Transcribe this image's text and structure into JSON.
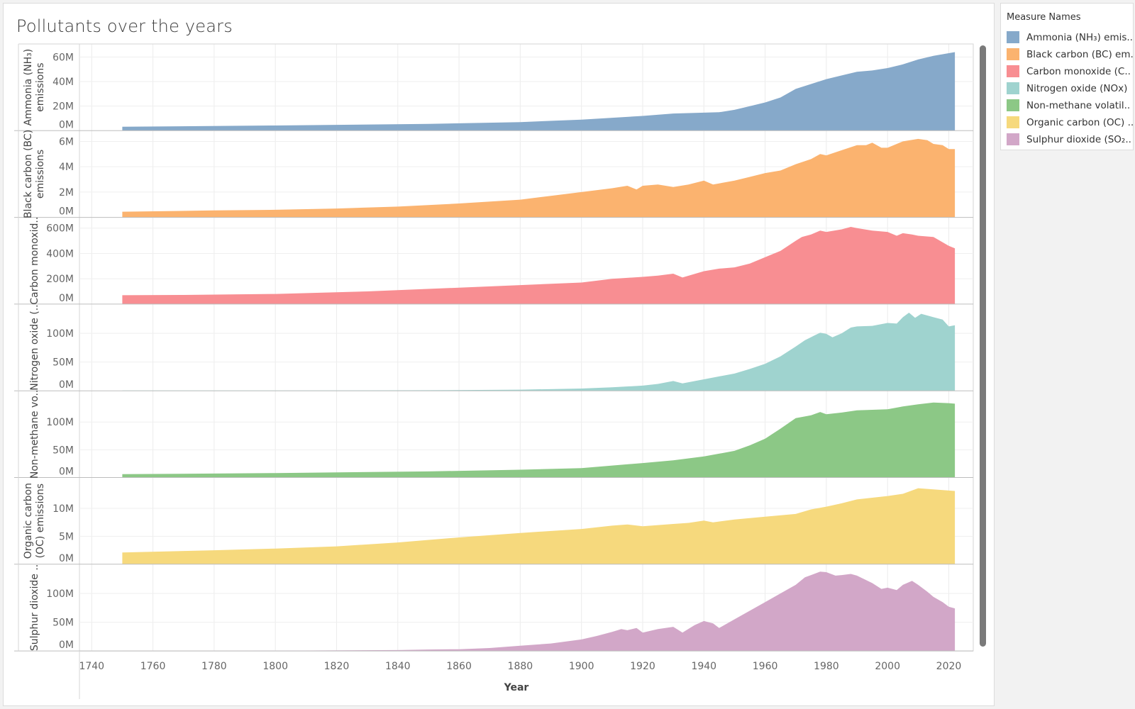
{
  "title": "Pollutants over the years",
  "legend": {
    "title": "Measure Names",
    "items": [
      {
        "label": "Ammonia (NH₃) emis..",
        "color": "#86a9ca"
      },
      {
        "label": "Black carbon (BC) em..",
        "color": "#fbb36f"
      },
      {
        "label": "Carbon monoxide (C..",
        "color": "#f88e92"
      },
      {
        "label": "Nitrogen oxide (NOx)",
        "color": "#9fd3cf"
      },
      {
        "label": "Non-methane volatil..",
        "color": "#8cc886"
      },
      {
        "label": "Organic carbon (OC) ..",
        "color": "#f6d97d"
      },
      {
        "label": "Sulphur dioxide (SO₂..",
        "color": "#d2a7c8"
      }
    ]
  },
  "chart_data": {
    "type": "area",
    "xlabel": "Year",
    "x_ticks": [
      1740,
      1760,
      1780,
      1800,
      1820,
      1840,
      1860,
      1880,
      1900,
      1920,
      1940,
      1960,
      1980,
      2000,
      2020
    ],
    "xlim": [
      1736,
      2028
    ],
    "grid": true,
    "legend_position": "right",
    "series": [
      {
        "axis_label": [
          "Ammonia (NH₃)",
          "emissions"
        ],
        "color": "#86a9ca",
        "ymax": 66000000,
        "y_ticks": [
          {
            "v": 0,
            "l": "0M"
          },
          {
            "v": 20000000,
            "l": "20M"
          },
          {
            "v": 40000000,
            "l": "40M"
          },
          {
            "v": 60000000,
            "l": "60M"
          }
        ],
        "points": [
          [
            1750,
            3200000.0
          ],
          [
            1800,
            4200000.0
          ],
          [
            1850,
            5500000.0
          ],
          [
            1880,
            7000000.0
          ],
          [
            1900,
            9000000.0
          ],
          [
            1920,
            12000000.0
          ],
          [
            1930,
            14000000.0
          ],
          [
            1945,
            15000000.0
          ],
          [
            1950,
            17000000.0
          ],
          [
            1955,
            20000000.0
          ],
          [
            1960,
            23000000.0
          ],
          [
            1965,
            27000000.0
          ],
          [
            1970,
            34000000.0
          ],
          [
            1975,
            38000000.0
          ],
          [
            1980,
            42000000.0
          ],
          [
            1985,
            45000000.0
          ],
          [
            1990,
            48000000.0
          ],
          [
            1995,
            49000000.0
          ],
          [
            2000,
            51000000.0
          ],
          [
            2005,
            54000000.0
          ],
          [
            2010,
            58000000.0
          ],
          [
            2015,
            61000000.0
          ],
          [
            2022,
            64000000.0
          ]
        ]
      },
      {
        "axis_label": [
          "Black carbon (BC)",
          "emissions"
        ],
        "color": "#fbb36f",
        "ymax": 6400000,
        "y_ticks": [
          {
            "v": 0,
            "l": "0M"
          },
          {
            "v": 2000000,
            "l": "2M"
          },
          {
            "v": 4000000,
            "l": "4M"
          },
          {
            "v": 6000000,
            "l": "6M"
          }
        ],
        "points": [
          [
            1750,
            450000.0
          ],
          [
            1780,
            550000.0
          ],
          [
            1800,
            600000.0
          ],
          [
            1820,
            700000.0
          ],
          [
            1840,
            850000.0
          ],
          [
            1860,
            1100000.0
          ],
          [
            1880,
            1400000.0
          ],
          [
            1890,
            1700000.0
          ],
          [
            1900,
            2000000.0
          ],
          [
            1910,
            2300000.0
          ],
          [
            1915,
            2500000.0
          ],
          [
            1918,
            2200000.0
          ],
          [
            1920,
            2500000.0
          ],
          [
            1925,
            2600000.0
          ],
          [
            1930,
            2400000.0
          ],
          [
            1935,
            2600000.0
          ],
          [
            1940,
            2900000.0
          ],
          [
            1943,
            2600000.0
          ],
          [
            1950,
            2900000.0
          ],
          [
            1955,
            3200000.0
          ],
          [
            1960,
            3500000.0
          ],
          [
            1965,
            3700000.0
          ],
          [
            1970,
            4200000.0
          ],
          [
            1975,
            4600000.0
          ],
          [
            1978,
            5000000.0
          ],
          [
            1980,
            4900000.0
          ],
          [
            1985,
            5300000.0
          ],
          [
            1990,
            5700000.0
          ],
          [
            1993,
            5700000.0
          ],
          [
            1995,
            5900000.0
          ],
          [
            1998,
            5500000.0
          ],
          [
            2000,
            5500000.0
          ],
          [
            2005,
            6000000.0
          ],
          [
            2010,
            6200000.0
          ],
          [
            2013,
            6100000.0
          ],
          [
            2015,
            5800000.0
          ],
          [
            2018,
            5700000.0
          ],
          [
            2020,
            5400000.0
          ],
          [
            2022,
            5400000.0
          ]
        ]
      },
      {
        "axis_label": [
          "Carbon monoxid.."
        ],
        "color": "#f88e92",
        "ymax": 640000000,
        "y_ticks": [
          {
            "v": 0,
            "l": "0M"
          },
          {
            "v": 200000000,
            "l": "200M"
          },
          {
            "v": 400000000,
            "l": "400M"
          },
          {
            "v": 600000000,
            "l": "600M"
          }
        ],
        "points": [
          [
            1750,
            70000000.0
          ],
          [
            1770,
            72000000.0
          ],
          [
            1800,
            80000000.0
          ],
          [
            1830,
            100000000.0
          ],
          [
            1860,
            130000000.0
          ],
          [
            1880,
            150000000.0
          ],
          [
            1900,
            170000000.0
          ],
          [
            1910,
            200000000.0
          ],
          [
            1920,
            215000000.0
          ],
          [
            1925,
            225000000.0
          ],
          [
            1930,
            240000000.0
          ],
          [
            1933,
            210000000.0
          ],
          [
            1940,
            260000000.0
          ],
          [
            1945,
            280000000.0
          ],
          [
            1950,
            290000000.0
          ],
          [
            1955,
            320000000.0
          ],
          [
            1960,
            370000000.0
          ],
          [
            1965,
            420000000.0
          ],
          [
            1970,
            500000000.0
          ],
          [
            1972,
            530000000.0
          ],
          [
            1975,
            550000000.0
          ],
          [
            1978,
            580000000.0
          ],
          [
            1980,
            570000000.0
          ],
          [
            1985,
            590000000.0
          ],
          [
            1988,
            610000000.0
          ],
          [
            1990,
            600000000.0
          ],
          [
            1995,
            580000000.0
          ],
          [
            2000,
            570000000.0
          ],
          [
            2003,
            540000000.0
          ],
          [
            2005,
            560000000.0
          ],
          [
            2008,
            550000000.0
          ],
          [
            2010,
            540000000.0
          ],
          [
            2015,
            530000000.0
          ],
          [
            2020,
            460000000.0
          ],
          [
            2022,
            440000000.0
          ]
        ]
      },
      {
        "axis_label": [
          "Nitrogen oxide (.."
        ],
        "color": "#9fd3cf",
        "ymax": 141000000,
        "y_ticks": [
          {
            "v": 0,
            "l": "0M"
          },
          {
            "v": 50000000,
            "l": "50M"
          },
          {
            "v": 100000000,
            "l": "100M"
          }
        ],
        "points": [
          [
            1750,
            500000.0
          ],
          [
            1800,
            500000.0
          ],
          [
            1850,
            1000000.0
          ],
          [
            1880,
            2000000.0
          ],
          [
            1900,
            4000000.0
          ],
          [
            1910,
            6000000.0
          ],
          [
            1920,
            9000000.0
          ],
          [
            1925,
            12000000.0
          ],
          [
            1930,
            17000000.0
          ],
          [
            1933,
            13000000.0
          ],
          [
            1940,
            20000000.0
          ],
          [
            1945,
            25000000.0
          ],
          [
            1950,
            30000000.0
          ],
          [
            1955,
            38000000.0
          ],
          [
            1960,
            47000000.0
          ],
          [
            1965,
            60000000.0
          ],
          [
            1970,
            77000000.0
          ],
          [
            1973,
            88000000.0
          ],
          [
            1976,
            96000000.0
          ],
          [
            1978,
            101000000.0
          ],
          [
            1980,
            99000000.0
          ],
          [
            1982,
            93000000.0
          ],
          [
            1985,
            100000000.0
          ],
          [
            1988,
            110000000.0
          ],
          [
            1990,
            112000000.0
          ],
          [
            1995,
            113000000.0
          ],
          [
            2000,
            118000000.0
          ],
          [
            2003,
            117000000.0
          ],
          [
            2005,
            128000000.0
          ],
          [
            2007,
            136000000.0
          ],
          [
            2009,
            127000000.0
          ],
          [
            2011,
            134000000.0
          ],
          [
            2013,
            131000000.0
          ],
          [
            2015,
            128000000.0
          ],
          [
            2018,
            124000000.0
          ],
          [
            2020,
            112000000.0
          ],
          [
            2022,
            114000000.0
          ]
        ]
      },
      {
        "axis_label": [
          "Non-methane vo.."
        ],
        "color": "#8cc886",
        "ymax": 146000000,
        "y_ticks": [
          {
            "v": 0,
            "l": "0M"
          },
          {
            "v": 50000000,
            "l": "50M"
          },
          {
            "v": 100000000,
            "l": "100M"
          }
        ],
        "points": [
          [
            1750,
            6000000.0
          ],
          [
            1800,
            8000000.0
          ],
          [
            1850,
            11000000.0
          ],
          [
            1880,
            14000000.0
          ],
          [
            1900,
            17000000.0
          ],
          [
            1920,
            26000000.0
          ],
          [
            1930,
            31000000.0
          ],
          [
            1940,
            38000000.0
          ],
          [
            1950,
            48000000.0
          ],
          [
            1955,
            58000000.0
          ],
          [
            1960,
            70000000.0
          ],
          [
            1965,
            88000000.0
          ],
          [
            1970,
            107000000.0
          ],
          [
            1975,
            112000000.0
          ],
          [
            1978,
            118000000.0
          ],
          [
            1980,
            114000000.0
          ],
          [
            1985,
            117000000.0
          ],
          [
            1990,
            121000000.0
          ],
          [
            1995,
            122000000.0
          ],
          [
            2000,
            123000000.0
          ],
          [
            2005,
            128000000.0
          ],
          [
            2010,
            132000000.0
          ],
          [
            2015,
            135000000.0
          ],
          [
            2020,
            134000000.0
          ],
          [
            2022,
            133000000.0
          ]
        ]
      },
      {
        "axis_label": [
          "Organic carbon",
          "(OC) emissions"
        ],
        "color": "#f6d97d",
        "ymax": 14500000,
        "y_ticks": [
          {
            "v": 0,
            "l": "0M"
          },
          {
            "v": 5000000,
            "l": "5M"
          },
          {
            "v": 10000000,
            "l": "10M"
          }
        ],
        "points": [
          [
            1750,
            2100000.0
          ],
          [
            1780,
            2500000.0
          ],
          [
            1800,
            2800000.0
          ],
          [
            1820,
            3200000.0
          ],
          [
            1840,
            3900000.0
          ],
          [
            1860,
            4800000.0
          ],
          [
            1880,
            5600000.0
          ],
          [
            1900,
            6300000.0
          ],
          [
            1910,
            6900000.0
          ],
          [
            1915,
            7100000.0
          ],
          [
            1920,
            6800000.0
          ],
          [
            1930,
            7200000.0
          ],
          [
            1935,
            7400000.0
          ],
          [
            1940,
            7800000.0
          ],
          [
            1943,
            7500000.0
          ],
          [
            1950,
            8000000.0
          ],
          [
            1960,
            8500000.0
          ],
          [
            1970,
            9000000.0
          ],
          [
            1975,
            9800000.0
          ],
          [
            1980,
            10300000.0
          ],
          [
            1985,
            10900000.0
          ],
          [
            1990,
            11600000.0
          ],
          [
            1995,
            11900000.0
          ],
          [
            2000,
            12200000.0
          ],
          [
            2005,
            12600000.0
          ],
          [
            2010,
            13600000.0
          ],
          [
            2015,
            13400000.0
          ],
          [
            2022,
            13100000.0
          ]
        ]
      },
      {
        "axis_label": [
          "Sulphur dioxide .."
        ],
        "color": "#d2a7c8",
        "ymax": 141000000,
        "y_ticks": [
          {
            "v": 0,
            "l": "0M"
          },
          {
            "v": 50000000,
            "l": "50M"
          },
          {
            "v": 100000000,
            "l": "100M"
          }
        ],
        "points": [
          [
            1750,
            200000.0
          ],
          [
            1800,
            500000.0
          ],
          [
            1840,
            1500000.0
          ],
          [
            1850,
            2500000.0
          ],
          [
            1860,
            3000000.0
          ],
          [
            1870,
            5000000.0
          ],
          [
            1880,
            9000000.0
          ],
          [
            1890,
            13000000.0
          ],
          [
            1900,
            20000000.0
          ],
          [
            1905,
            26000000.0
          ],
          [
            1910,
            33000000.0
          ],
          [
            1913,
            38000000.0
          ],
          [
            1915,
            36000000.0
          ],
          [
            1918,
            40000000.0
          ],
          [
            1920,
            32000000.0
          ],
          [
            1925,
            38000000.0
          ],
          [
            1930,
            42000000.0
          ],
          [
            1933,
            32000000.0
          ],
          [
            1937,
            45000000.0
          ],
          [
            1940,
            52000000.0
          ],
          [
            1943,
            48000000.0
          ],
          [
            1945,
            40000000.0
          ],
          [
            1950,
            55000000.0
          ],
          [
            1955,
            70000000.0
          ],
          [
            1960,
            85000000.0
          ],
          [
            1965,
            100000000.0
          ],
          [
            1970,
            115000000.0
          ],
          [
            1973,
            128000000.0
          ],
          [
            1975,
            132000000.0
          ],
          [
            1978,
            138000000.0
          ],
          [
            1980,
            137000000.0
          ],
          [
            1983,
            131000000.0
          ],
          [
            1985,
            132000000.0
          ],
          [
            1988,
            134000000.0
          ],
          [
            1990,
            131000000.0
          ],
          [
            1995,
            118000000.0
          ],
          [
            1998,
            108000000.0
          ],
          [
            2000,
            110000000.0
          ],
          [
            2003,
            106000000.0
          ],
          [
            2005,
            115000000.0
          ],
          [
            2008,
            122000000.0
          ],
          [
            2010,
            115000000.0
          ],
          [
            2013,
            103000000.0
          ],
          [
            2015,
            94000000.0
          ],
          [
            2018,
            85000000.0
          ],
          [
            2020,
            77000000.0
          ],
          [
            2022,
            74000000.0
          ]
        ]
      }
    ]
  }
}
